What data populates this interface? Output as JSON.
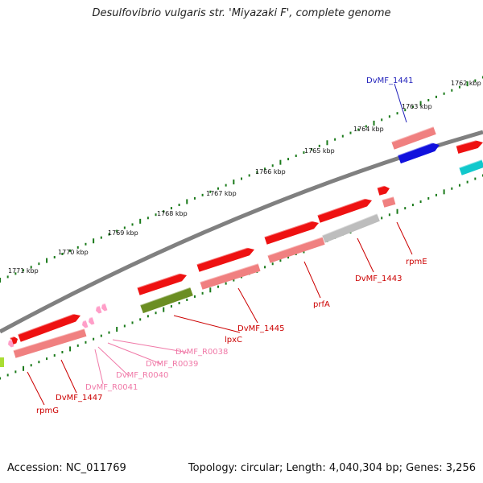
{
  "title": "Desulfovibrio vulgaris str. 'Miyazaki F', complete genome",
  "footer": {
    "accession": "Accession: NC_011769",
    "stats": "Topology: circular; Length: 4,040,304 bp; Genes: 3,256"
  },
  "colors": {
    "forward_gene": "#ee1111",
    "cds": "#f08080",
    "trna": "#ff9ec8",
    "blue_gene": "#1111dd",
    "cyan_gene": "#11c8cc",
    "olive_gene": "#6b8e23",
    "gray_gene": "#bdbdbd",
    "backbone": "#808080",
    "ticks": "#1a7a1a",
    "label_red": "#cc0000",
    "label_pink": "#f07aa8",
    "label_blue": "#2222bb"
  },
  "kbp_scale": [
    {
      "label": "1762 kbp"
    },
    {
      "label": "1763 kbp"
    },
    {
      "label": "1764 kbp"
    },
    {
      "label": "1765 kbp"
    },
    {
      "label": "1766 kbp"
    },
    {
      "label": "1767 kbp"
    },
    {
      "label": "1768 kbp"
    },
    {
      "label": "1769 kbp"
    },
    {
      "label": "1770 kbp"
    },
    {
      "label": "1771 kbp"
    }
  ],
  "gene_labels": [
    {
      "name": "DvMF_1441",
      "kind": "blue"
    },
    {
      "name": "rpmE",
      "kind": "red"
    },
    {
      "name": "DvMF_1443",
      "kind": "red"
    },
    {
      "name": "prfA",
      "kind": "red"
    },
    {
      "name": "DvMF_1445",
      "kind": "red"
    },
    {
      "name": "lpxC",
      "kind": "red"
    },
    {
      "name": "DvMF_R0038",
      "kind": "pink"
    },
    {
      "name": "DvMF_R0039",
      "kind": "pink"
    },
    {
      "name": "DvMF_R0040",
      "kind": "pink"
    },
    {
      "name": "DvMF_R0041",
      "kind": "pink"
    },
    {
      "name": "DvMF_1447",
      "kind": "red"
    },
    {
      "name": "rpmG",
      "kind": "red"
    }
  ]
}
